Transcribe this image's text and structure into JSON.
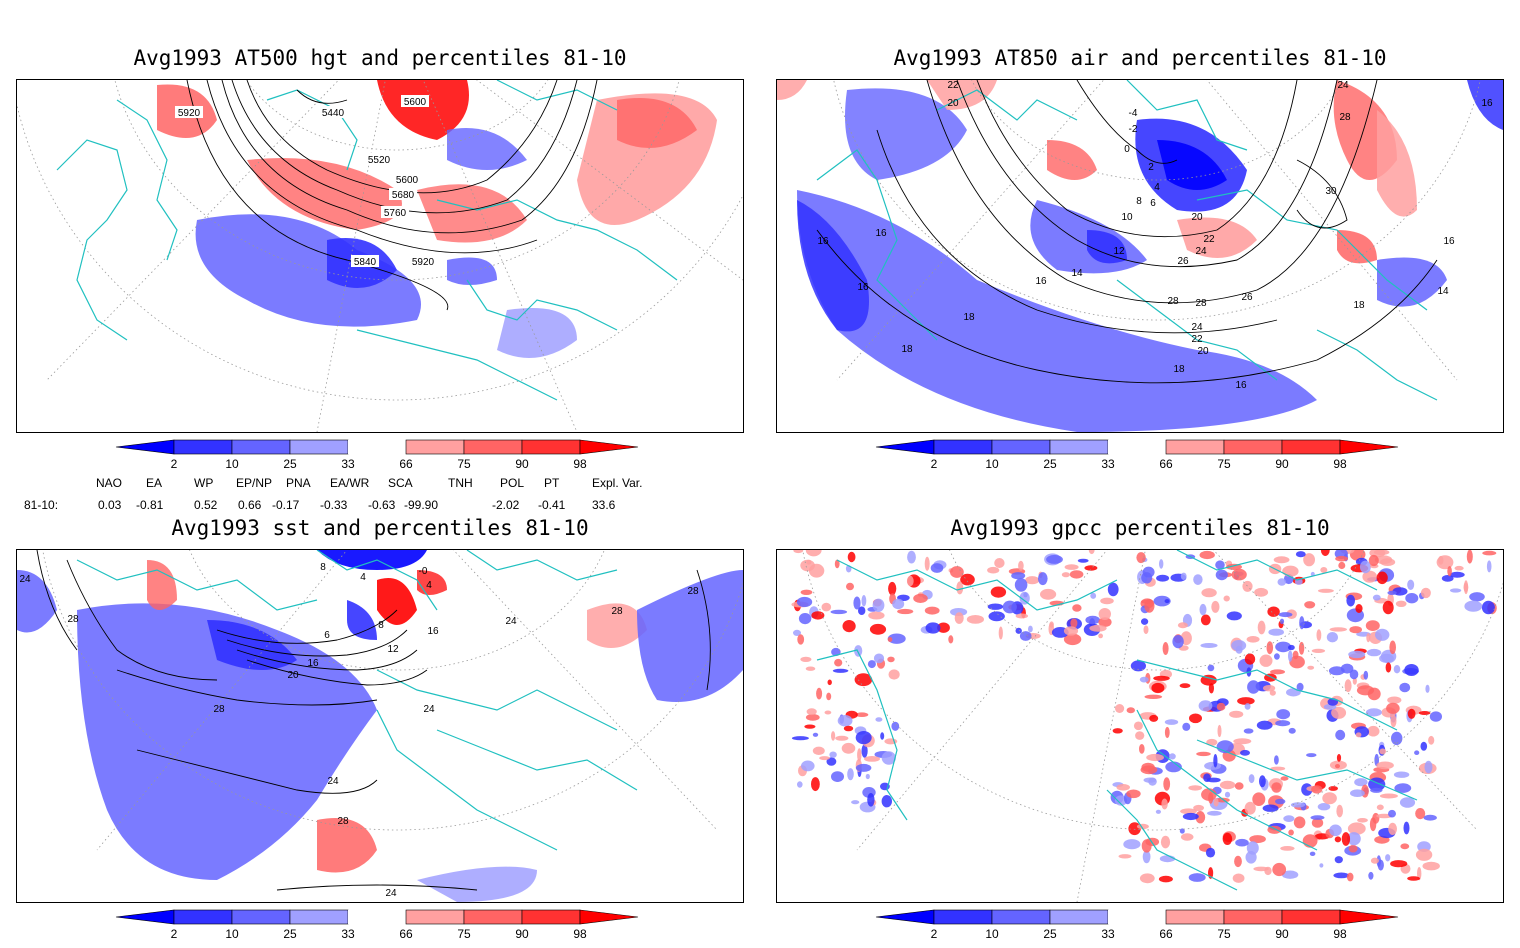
{
  "panels": [
    {
      "title": "Avg1993 AT500 hgt and percentiles 81-10",
      "contour_labels": [
        "5920",
        "5440",
        "5600",
        "5520",
        "5600",
        "5680",
        "5760",
        "5840",
        "5920"
      ]
    },
    {
      "title": "Avg1993 AT850 air and percentiles 81-10",
      "contour_labels": [
        "22",
        "20",
        "-4",
        "-2",
        "0",
        "2",
        "4",
        "6",
        "8",
        "10",
        "12",
        "14",
        "16",
        "16",
        "16",
        "16",
        "18",
        "20",
        "22",
        "24",
        "26",
        "28",
        "28",
        "26",
        "24",
        "22",
        "20",
        "18",
        "16",
        "18",
        "24",
        "28",
        "30",
        "18",
        "16",
        "14",
        "16"
      ]
    },
    {
      "title": "Avg1993 sst and percentiles 81-10",
      "contour_labels": [
        "24",
        "28",
        "8",
        "4",
        "-0",
        "4",
        "6",
        "8",
        "12",
        "16",
        "16",
        "20",
        "24",
        "24",
        "28",
        "28",
        "24",
        "28",
        "28",
        "24"
      ]
    },
    {
      "title": "Avg1993 gpcc percentiles 81-10",
      "contour_labels": []
    }
  ],
  "colorbar": {
    "labels": [
      "2",
      "10",
      "25",
      "33",
      "66",
      "75",
      "90",
      "98"
    ],
    "colors": [
      "#0000ff",
      "#3232ff",
      "#6464ff",
      "#a0a0ff",
      "#ffa0a0",
      "#ff6464",
      "#ff3232",
      "#ff0000"
    ]
  },
  "indices": {
    "row_label": "81-10:",
    "names": [
      "NAO",
      "EA",
      "WP",
      "EP/NP",
      "PNA",
      "EA/WR",
      "SCA",
      "TNH",
      "POL",
      "PT",
      "Expl. Var."
    ],
    "values": [
      "0.03",
      "-0.81",
      "0.52",
      "0.66",
      "-0.17",
      "-0.33",
      "-0.63",
      "-99.90",
      "-2.02",
      "-0.41",
      "33.6"
    ]
  },
  "colors": {
    "coast": "#20c0c0",
    "grid": "#999999",
    "contour": "#000000"
  }
}
